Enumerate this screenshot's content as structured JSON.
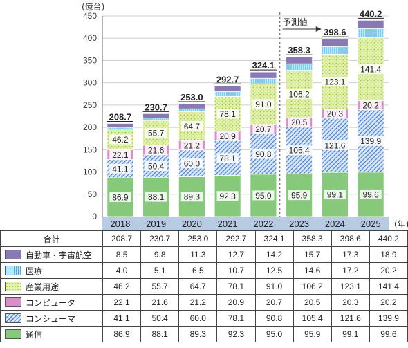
{
  "chart_data": {
    "type": "bar",
    "stacked": true,
    "ylabel": "(億台)",
    "xlabel_unit": "(年)",
    "ylim": [
      0,
      450
    ],
    "yticks": [
      0,
      50,
      100,
      150,
      200,
      250,
      300,
      350,
      400,
      450
    ],
    "categories": [
      "2018",
      "2019",
      "2020",
      "2021",
      "2022",
      "2023",
      "2024",
      "2025"
    ],
    "forecast_label": "予測値",
    "forecast_start": "2023",
    "series": [
      {
        "name": "通信",
        "values": [
          86.9,
          88.1,
          89.3,
          92.3,
          95.0,
          95.9,
          99.1,
          99.6
        ],
        "color": "#86c97a",
        "pattern": "solid"
      },
      {
        "name": "コンシューマ",
        "values": [
          41.1,
          50.4,
          60.0,
          78.1,
          90.8,
          105.4,
          121.6,
          139.9
        ],
        "color": "#5b8fd6",
        "pattern": "hatch"
      },
      {
        "name": "コンピュータ",
        "values": [
          22.1,
          21.6,
          21.2,
          20.9,
          20.7,
          20.5,
          20.3,
          20.2
        ],
        "color": "#d98fc9",
        "pattern": "solid"
      },
      {
        "name": "産業用途",
        "values": [
          46.2,
          55.7,
          64.7,
          78.1,
          91.0,
          106.2,
          123.1,
          141.4
        ],
        "color": "#c5e07a",
        "pattern": "dots"
      },
      {
        "name": "医療",
        "values": [
          4.0,
          5.1,
          6.5,
          10.7,
          12.5,
          14.6,
          17.2,
          20.2
        ],
        "color": "#6cc3ee",
        "pattern": "vlines"
      },
      {
        "name": "自動車・宇宙航空",
        "values": [
          8.5,
          9.8,
          11.3,
          12.7,
          14.2,
          15.7,
          17.3,
          18.9
        ],
        "color": "#8a78b4",
        "pattern": "solid"
      }
    ],
    "totals_label": "合計",
    "totals": [
      208.7,
      230.7,
      253.0,
      292.7,
      324.1,
      358.3,
      398.6,
      440.2
    ],
    "bar_labels_shown_for": [
      "通信",
      "コンシューマ",
      "コンピュータ",
      "産業用途"
    ]
  }
}
